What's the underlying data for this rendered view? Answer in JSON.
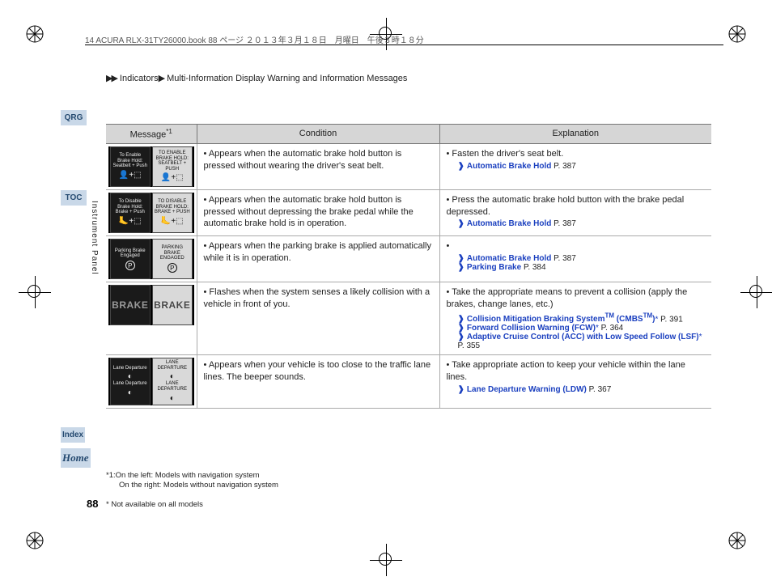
{
  "header_line": "14 ACURA RLX-31TY26000.book  88 ページ  ２０１３年３月１８日　月曜日　午後３時１８分",
  "breadcrumb": {
    "arrows": "▶▶",
    "seg1": "Indicators",
    "seg2": "Multi-Information Display Warning and Information Messages"
  },
  "sidetabs": {
    "qrg": "QRG",
    "toc": "TOC",
    "index": "Index",
    "home": "Home"
  },
  "vertical_label": "Instrument Panel",
  "table": {
    "headers": {
      "msg": "Message",
      "msg_sup": "*1",
      "cond": "Condition",
      "expl": "Explanation"
    },
    "rows": [
      {
        "msg_dark": "To Enable Brake Hold: Seatbelt + Push",
        "msg_light": "TO ENABLE BRAKE HOLD: SEATBELT + PUSH",
        "icon_type": "seatbelt",
        "condition": "Appears when the automatic brake hold button is pressed without wearing the driver's seat belt.",
        "explanation": "Fasten the driver's seat belt.",
        "refs": [
          {
            "label": "Automatic Brake Hold",
            "page": "P. 387"
          }
        ]
      },
      {
        "msg_dark": "To Disable Brake Hold: Brake + Push",
        "msg_light": "TO DISABLE BRAKE HOLD: BRAKE + PUSH",
        "icon_type": "brakepush",
        "condition": "Appears when the automatic brake hold button is pressed without depressing the brake pedal while the automatic brake hold is in operation.",
        "explanation": "Press the automatic brake hold button with the brake pedal depressed.",
        "refs": [
          {
            "label": "Automatic Brake Hold",
            "page": "P. 387"
          }
        ]
      },
      {
        "msg_dark": "Parking Brake Engaged",
        "msg_light": "PARKING BRAKE ENGAGED",
        "icon_type": "parking",
        "condition": "Appears when the parking brake is applied automatically while it is in operation.",
        "explanation": "",
        "refs": [
          {
            "label": "Automatic Brake Hold",
            "page": "P. 387"
          },
          {
            "label": "Parking Brake",
            "page": "P. 384"
          }
        ]
      },
      {
        "msg_dark": "BRAKE",
        "msg_light": "BRAKE",
        "icon_type": "brake",
        "condition": "Flashes when the system senses a likely collision with a vehicle in front of you.",
        "explanation": "Take the appropriate means to prevent a collision (apply the brakes, change lanes, etc.)",
        "refs": [
          {
            "label": "Collision Mitigation Braking System",
            "tm": true,
            "abbr": " (CMBS",
            "abbr_tm": true,
            "abbr2": ")",
            "star": "*",
            "page": "P. 391"
          },
          {
            "label": "Forward Collision Warning (FCW)",
            "star": "*",
            "page": "P. 364"
          },
          {
            "label": "Adaptive Cruise Control (ACC) with Low Speed Follow (LSF)",
            "star": "*",
            "page": "P. 355"
          }
        ]
      },
      {
        "msg_dark": "Lane Departure",
        "msg_light": "LANE DEPARTURE",
        "icon_type": "lane",
        "condition": "Appears when your vehicle is too close to the traffic lane lines. The beeper sounds.",
        "explanation": "Take appropriate action to keep your vehicle within the lane lines.",
        "refs": [
          {
            "label": "Lane Departure Warning (LDW)",
            "page": "P. 367"
          }
        ]
      }
    ]
  },
  "footnote1": "*1:On the left: Models with navigation system",
  "footnote2": "On the right: Models without navigation system",
  "page_number": "88",
  "star_note": "* Not available on all models"
}
